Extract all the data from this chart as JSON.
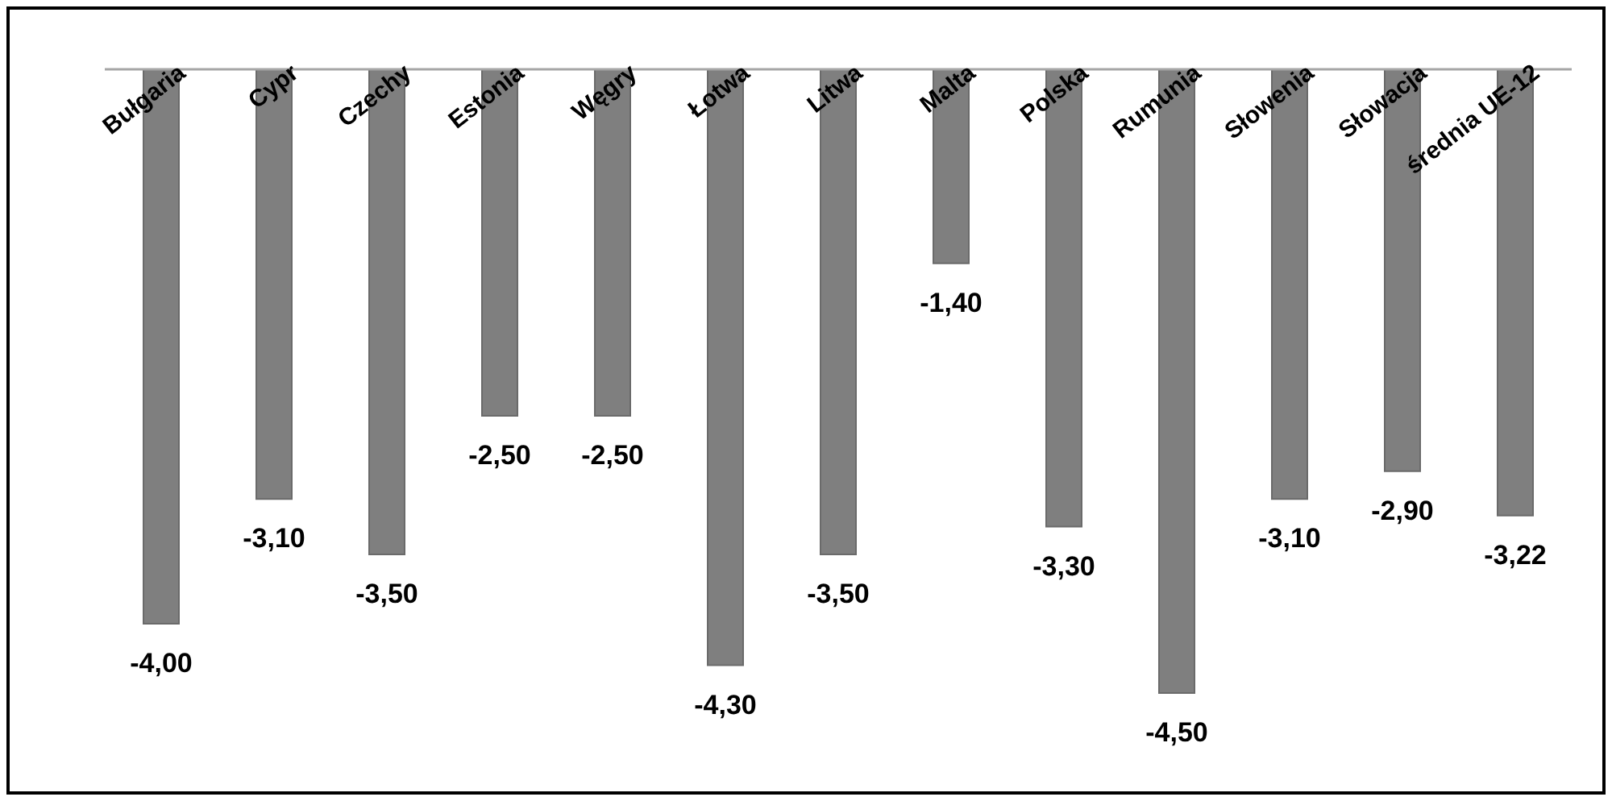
{
  "chart_data": {
    "type": "bar",
    "categories": [
      "Bułgaria",
      "Cypr",
      "Czechy",
      "Estonia",
      "Węgry",
      "Łotwa",
      "Litwa",
      "Malta",
      "Polska",
      "Rumunia",
      "Słowenia",
      "Słowacja",
      "średnia UE-12"
    ],
    "values": [
      -4.0,
      -3.1,
      -3.5,
      -2.5,
      -2.5,
      -4.3,
      -3.5,
      -1.4,
      -3.3,
      -4.5,
      -3.1,
      -2.9,
      -3.22
    ],
    "value_labels": [
      "-4,00",
      "-3,10",
      "-3,50",
      "-2,50",
      "-2,50",
      "-4,30",
      "-3,50",
      "-1,40",
      "-3,30",
      "-4,50",
      "-3,10",
      "-2,90",
      "-3,22"
    ],
    "color": "#7f7f7f"
  }
}
